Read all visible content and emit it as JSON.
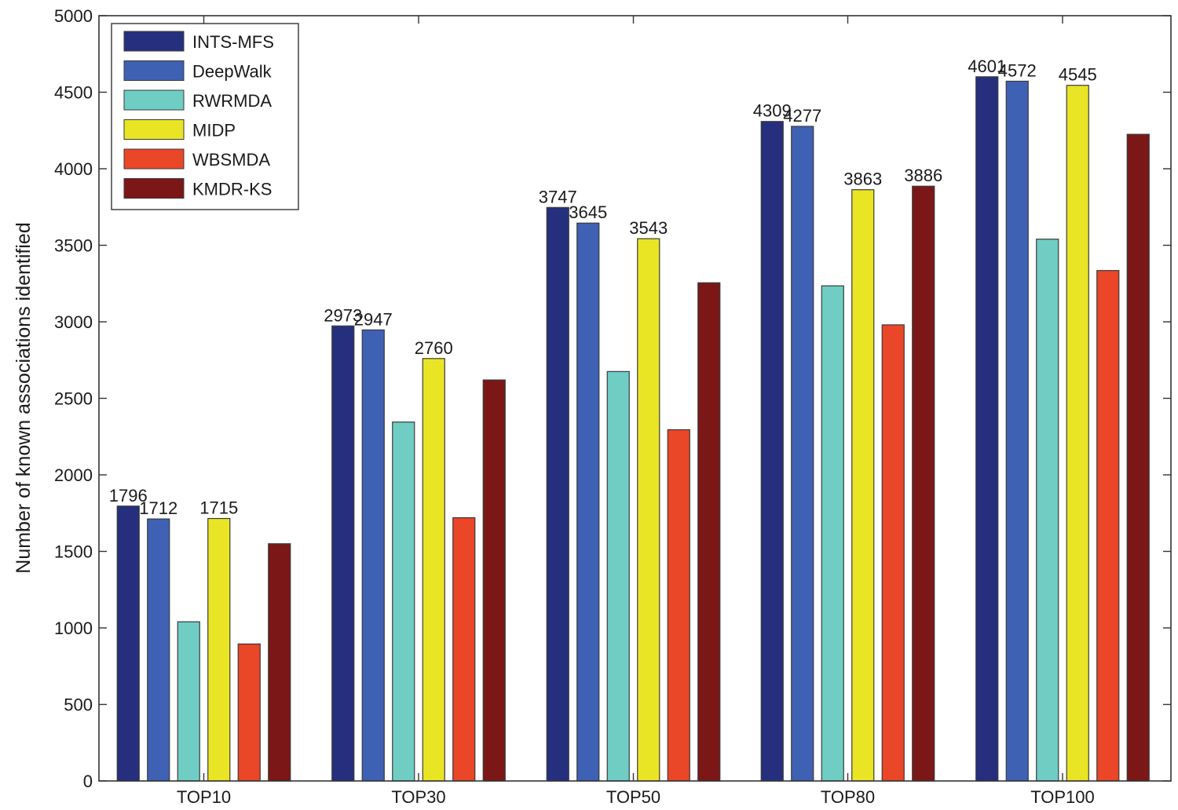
{
  "chart_data": {
    "type": "bar",
    "title": "",
    "xlabel": "",
    "ylabel": "Number of known associations identified",
    "ylim": [
      0,
      5000
    ],
    "yticks": [
      0,
      500,
      1000,
      1500,
      2000,
      2500,
      3000,
      3500,
      4000,
      4500,
      5000
    ],
    "grid": false,
    "legend_position": "top-left",
    "categories": [
      "TOP10",
      "TOP30",
      "TOP50",
      "TOP80",
      "TOP100"
    ],
    "series": [
      {
        "name": "INTS-MFS",
        "color": "#262f7e",
        "values": [
          1796,
          2973,
          3747,
          4309,
          4601
        ],
        "labels": [
          "1796",
          "2973",
          "3747",
          "4309",
          "4601"
        ]
      },
      {
        "name": "DeepWalk",
        "color": "#3f61b4",
        "values": [
          1712,
          2947,
          3645,
          4277,
          4572
        ],
        "labels": [
          "1712",
          "2947",
          "3645",
          "4277",
          "4572"
        ]
      },
      {
        "name": "RWRMDA",
        "color": "#6fcdc4",
        "values": [
          1040,
          2345,
          2675,
          3235,
          3540
        ],
        "labels": [
          "",
          "",
          "",
          "",
          ""
        ]
      },
      {
        "name": "MIDP",
        "color": "#e9e524",
        "values": [
          1715,
          2760,
          3543,
          3863,
          4545
        ],
        "labels": [
          "1715",
          "2760",
          "3543",
          "3863",
          "4545"
        ]
      },
      {
        "name": "WBSMDA",
        "color": "#ea4628",
        "values": [
          895,
          1720,
          2295,
          2980,
          3335
        ],
        "labels": [
          "",
          "",
          "",
          "",
          ""
        ]
      },
      {
        "name": "KMDR-KS",
        "color": "#7c1718",
        "values": [
          1550,
          2620,
          3255,
          3886,
          4225
        ],
        "labels": [
          "",
          "",
          "",
          "3886",
          ""
        ]
      }
    ]
  }
}
